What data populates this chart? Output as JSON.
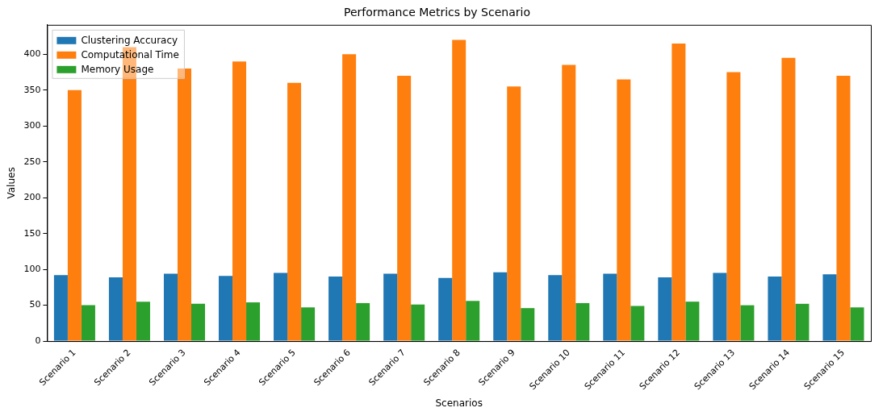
{
  "chart_data": {
    "type": "bar",
    "title": "Performance Metrics by Scenario",
    "xlabel": "Scenarios",
    "ylabel": "Values",
    "categories": [
      "Scenario 1",
      "Scenario 2",
      "Scenario 3",
      "Scenario 4",
      "Scenario 5",
      "Scenario 6",
      "Scenario 7",
      "Scenario 8",
      "Scenario 9",
      "Scenario 10",
      "Scenario 11",
      "Scenario 12",
      "Scenario 13",
      "Scenario 14",
      "Scenario 15"
    ],
    "series": [
      {
        "name": "Clustering Accuracy",
        "color": "#1f77b4",
        "values": [
          92,
          89,
          94,
          91,
          95,
          90,
          94,
          88,
          96,
          92,
          94,
          89,
          95,
          90,
          93
        ]
      },
      {
        "name": "Computational Time",
        "color": "#ff7f0e",
        "values": [
          350,
          410,
          380,
          390,
          360,
          400,
          370,
          420,
          355,
          385,
          365,
          415,
          375,
          395,
          370
        ]
      },
      {
        "name": "Memory Usage",
        "color": "#2ca02c",
        "values": [
          50,
          55,
          52,
          54,
          47,
          53,
          51,
          56,
          46,
          53,
          49,
          55,
          50,
          52,
          47
        ]
      }
    ],
    "ylim": [
      0,
      441
    ],
    "yticks": [
      0,
      50,
      100,
      150,
      200,
      250,
      300,
      350,
      400
    ],
    "legend": "top left",
    "grid": false
  }
}
